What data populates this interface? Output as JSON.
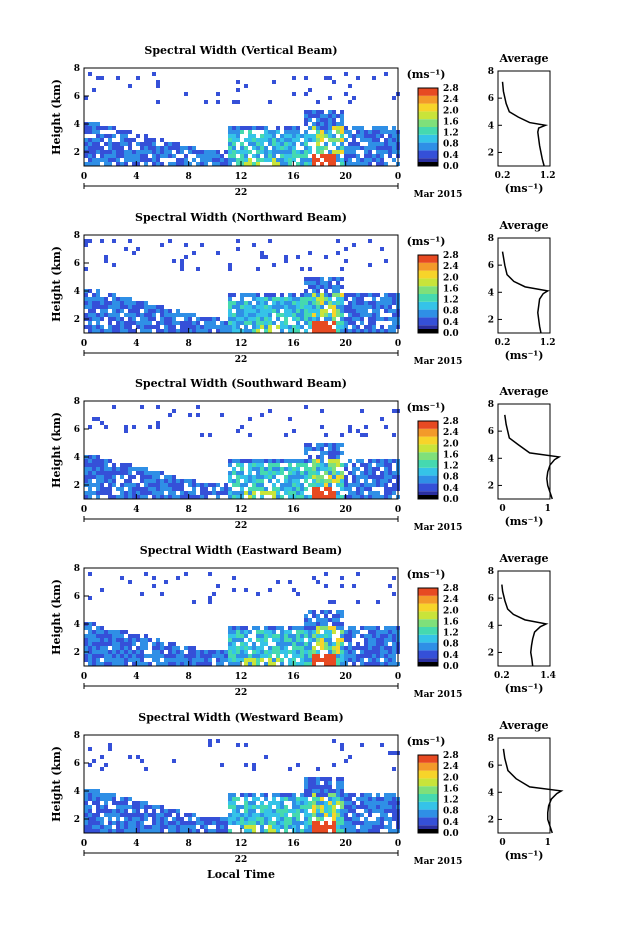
{
  "figure": {
    "xlabel": "Local Time",
    "date_label": "Mar 2015",
    "day_label": "22",
    "cb_unit": "(ms⁻¹)",
    "avg_title": "Average",
    "ylabel": "Height (km)"
  },
  "chart_data": [
    {
      "type": "heatmap",
      "title": "Spectral Width (Vertical Beam)",
      "xlabel": "",
      "ylabel": "Height (km)",
      "x_ticks": [
        "0",
        "4",
        "8",
        "12",
        "16",
        "20",
        "0"
      ],
      "xlim": [
        0,
        24
      ],
      "y_ticks": [
        "2",
        "4",
        "6",
        "8"
      ],
      "ylim": [
        1,
        8
      ],
      "colorbar": {
        "unit": "(ms⁻¹)",
        "ticks": [
          "0.0",
          "0.4",
          "0.8",
          "1.2",
          "1.6",
          "2.0",
          "2.4",
          "2.8"
        ],
        "range": [
          0,
          2.8
        ]
      },
      "average_profile": {
        "title": "Average",
        "xlabel": "(ms⁻¹)",
        "x_ticks": [
          "0.2",
          "1.2"
        ],
        "y_ticks": [
          "2",
          "4",
          "6",
          "8"
        ],
        "points": [
          [
            1.12,
            1.0
          ],
          [
            1.08,
            1.5
          ],
          [
            1.05,
            2.0
          ],
          [
            1.02,
            2.5
          ],
          [
            1.0,
            3.0
          ],
          [
            0.98,
            3.5
          ],
          [
            1.0,
            3.8
          ],
          [
            1.15,
            4.0
          ],
          [
            0.8,
            4.2
          ],
          [
            0.55,
            4.6
          ],
          [
            0.35,
            5.0
          ],
          [
            0.28,
            5.6
          ],
          [
            0.22,
            6.5
          ],
          [
            0.2,
            7.2
          ]
        ]
      }
    },
    {
      "type": "heatmap",
      "title": "Spectral Width (Northward Beam)",
      "xlabel": "",
      "ylabel": "Height (km)",
      "x_ticks": [
        "0",
        "4",
        "8",
        "12",
        "16",
        "20",
        "0"
      ],
      "xlim": [
        0,
        24
      ],
      "y_ticks": [
        "2",
        "4",
        "6",
        "8"
      ],
      "ylim": [
        1,
        8
      ],
      "colorbar": {
        "unit": "(ms⁻¹)",
        "ticks": [
          "0.0",
          "0.4",
          "0.8",
          "1.2",
          "1.6",
          "2.0",
          "2.4",
          "2.8"
        ],
        "range": [
          0,
          2.8
        ]
      },
      "average_profile": {
        "title": "Average",
        "xlabel": "(ms⁻¹)",
        "x_ticks": [
          "0.2",
          "1.2"
        ],
        "y_ticks": [
          "2",
          "4",
          "6",
          "8"
        ],
        "points": [
          [
            1.05,
            1.0
          ],
          [
            1.02,
            1.5
          ],
          [
            1.0,
            2.0
          ],
          [
            0.98,
            2.5
          ],
          [
            1.0,
            3.0
          ],
          [
            1.02,
            3.5
          ],
          [
            1.1,
            3.9
          ],
          [
            1.2,
            4.1
          ],
          [
            0.7,
            4.4
          ],
          [
            0.45,
            4.8
          ],
          [
            0.3,
            5.3
          ],
          [
            0.25,
            6.0
          ],
          [
            0.2,
            7.0
          ]
        ]
      }
    },
    {
      "type": "heatmap",
      "title": "Spectral Width (Southward Beam)",
      "xlabel": "",
      "ylabel": "Height (km)",
      "x_ticks": [
        "0",
        "4",
        "8",
        "12",
        "16",
        "20",
        "0"
      ],
      "xlim": [
        0,
        24
      ],
      "y_ticks": [
        "2",
        "4",
        "6",
        "8"
      ],
      "ylim": [
        1,
        8
      ],
      "colorbar": {
        "unit": "(ms⁻¹)",
        "ticks": [
          "0.0",
          "0.4",
          "0.8",
          "1.2",
          "1.6",
          "2.0",
          "2.4",
          "2.8"
        ],
        "range": [
          0,
          2.8
        ]
      },
      "average_profile": {
        "title": "Average",
        "xlabel": "(ms⁻¹)",
        "x_ticks": [
          "0",
          "1"
        ],
        "y_ticks": [
          "2",
          "4",
          "6",
          "8"
        ],
        "points": [
          [
            1.1,
            1.0
          ],
          [
            1.05,
            1.5
          ],
          [
            1.0,
            2.0
          ],
          [
            0.98,
            2.5
          ],
          [
            1.0,
            3.0
          ],
          [
            1.05,
            3.5
          ],
          [
            1.15,
            3.9
          ],
          [
            1.25,
            4.1
          ],
          [
            0.6,
            4.4
          ],
          [
            0.35,
            5.0
          ],
          [
            0.15,
            5.5
          ],
          [
            0.08,
            6.5
          ],
          [
            0.05,
            7.2
          ]
        ]
      }
    },
    {
      "type": "heatmap",
      "title": "Spectral Width (Eastward Beam)",
      "xlabel": "",
      "ylabel": "Height (km)",
      "x_ticks": [
        "0",
        "4",
        "8",
        "12",
        "16",
        "20",
        "0"
      ],
      "xlim": [
        0,
        24
      ],
      "y_ticks": [
        "2",
        "4",
        "6",
        "8"
      ],
      "ylim": [
        1,
        8
      ],
      "colorbar": {
        "unit": "(ms⁻¹)",
        "ticks": [
          "0.0",
          "0.4",
          "0.8",
          "1.2",
          "1.6",
          "2.0",
          "2.4",
          "2.8"
        ],
        "range": [
          0,
          2.8
        ]
      },
      "average_profile": {
        "title": "Average",
        "xlabel": "(ms⁻¹)",
        "x_ticks": [
          "0.2",
          "1.4"
        ],
        "y_ticks": [
          "2",
          "4",
          "6",
          "8"
        ],
        "points": [
          [
            1.0,
            1.0
          ],
          [
            0.98,
            1.5
          ],
          [
            0.95,
            2.0
          ],
          [
            0.97,
            2.5
          ],
          [
            1.0,
            3.0
          ],
          [
            1.05,
            3.5
          ],
          [
            1.2,
            3.9
          ],
          [
            1.35,
            4.1
          ],
          [
            0.8,
            4.4
          ],
          [
            0.5,
            4.8
          ],
          [
            0.35,
            5.2
          ],
          [
            0.28,
            5.8
          ],
          [
            0.22,
            6.5
          ],
          [
            0.2,
            7.0
          ]
        ]
      }
    },
    {
      "type": "heatmap",
      "title": "Spectral Width (Westward Beam)",
      "xlabel": "Local Time",
      "ylabel": "Height (km)",
      "x_ticks": [
        "0",
        "4",
        "8",
        "12",
        "16",
        "20",
        "0"
      ],
      "xlim": [
        0,
        24
      ],
      "y_ticks": [
        "2",
        "4",
        "6",
        "8"
      ],
      "ylim": [
        1,
        8
      ],
      "colorbar": {
        "unit": "(ms⁻¹)",
        "ticks": [
          "0.0",
          "0.4",
          "0.8",
          "1.2",
          "1.6",
          "2.0",
          "2.4",
          "2.8"
        ],
        "range": [
          0,
          2.8
        ]
      },
      "average_profile": {
        "title": "Average",
        "xlabel": "(ms⁻¹)",
        "x_ticks": [
          "0",
          "1"
        ],
        "y_ticks": [
          "2",
          "4",
          "6",
          "8"
        ],
        "points": [
          [
            1.1,
            1.0
          ],
          [
            1.05,
            1.5
          ],
          [
            1.0,
            2.0
          ],
          [
            1.0,
            2.5
          ],
          [
            1.02,
            3.0
          ],
          [
            1.08,
            3.5
          ],
          [
            1.2,
            3.9
          ],
          [
            1.3,
            4.1
          ],
          [
            0.6,
            4.4
          ],
          [
            0.3,
            5.0
          ],
          [
            0.12,
            5.6
          ],
          [
            0.05,
            6.5
          ],
          [
            0.02,
            7.2
          ]
        ]
      }
    }
  ]
}
